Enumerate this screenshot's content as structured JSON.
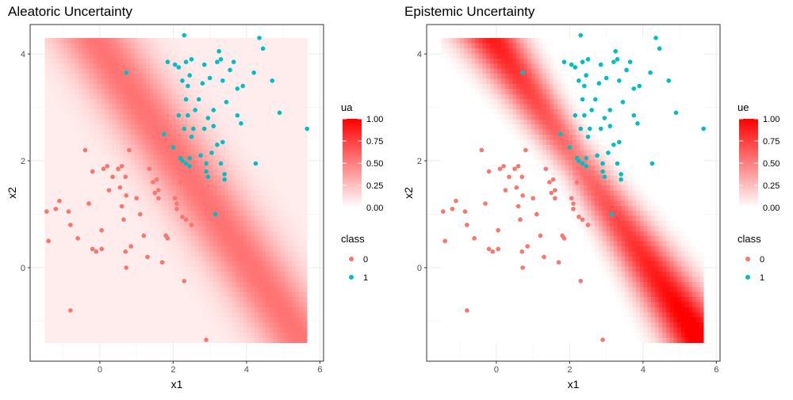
{
  "chart_data": [
    {
      "type": "scatter",
      "title": "Aleatoric Uncertainty",
      "xlabel": "x1",
      "ylabel": "x2",
      "xlim": [
        -1.9,
        6.1
      ],
      "ylim": [
        -1.75,
        4.55
      ],
      "x_ticks": [
        0,
        2,
        4,
        6
      ],
      "y_ticks": [
        0,
        2,
        4
      ],
      "grid": true,
      "heatmap": {
        "variable": "ua",
        "x_range": [
          -1.5,
          5.65
        ],
        "y_range": [
          -1.4,
          4.3
        ],
        "colorbar_ticks": [
          "0.00",
          "0.25",
          "0.50",
          "0.75",
          "1.00"
        ],
        "low_color": "#ffffff",
        "high_color": "#ff0000",
        "pattern": "aleatoric"
      },
      "legend": {
        "title": "class",
        "entries": [
          "0",
          "1"
        ],
        "colors": [
          "#f8766d",
          "#00bfc4"
        ],
        "placement": "right"
      }
    },
    {
      "type": "scatter",
      "title": "Epistemic Uncertainty",
      "xlabel": "x1",
      "ylabel": "x2",
      "xlim": [
        -1.9,
        6.1
      ],
      "ylim": [
        -1.75,
        4.55
      ],
      "x_ticks": [
        0,
        2,
        4,
        6
      ],
      "y_ticks": [
        0,
        2,
        4
      ],
      "grid": true,
      "heatmap": {
        "variable": "ue",
        "x_range": [
          -1.5,
          5.65
        ],
        "y_range": [
          -1.4,
          4.3
        ],
        "colorbar_ticks": [
          "0.00",
          "0.25",
          "0.50",
          "0.75",
          "1.00"
        ],
        "low_color": "#ffffff",
        "high_color": "#ff0000",
        "pattern": "epistemic"
      },
      "legend": {
        "title": "class",
        "entries": [
          "0",
          "1"
        ],
        "colors": [
          "#f8766d",
          "#00bfc4"
        ],
        "placement": "right"
      }
    }
  ],
  "points": {
    "class_0": [
      [
        -1.45,
        1.05
      ],
      [
        -1.2,
        1.1
      ],
      [
        -1.1,
        1.25
      ],
      [
        -0.85,
        1.05
      ],
      [
        -0.8,
        0.8
      ],
      [
        -1.4,
        0.5
      ],
      [
        -0.4,
        2.2
      ],
      [
        -0.6,
        0.55
      ],
      [
        -0.2,
        1.8
      ],
      [
        -0.3,
        1.2
      ],
      [
        0.1,
        1.85
      ],
      [
        0.05,
        0.7
      ],
      [
        0.2,
        1.9
      ],
      [
        0.25,
        1.45
      ],
      [
        0.35,
        1.7
      ],
      [
        0.5,
        1.85
      ],
      [
        0.55,
        1.5
      ],
      [
        0.6,
        1.15
      ],
      [
        0.65,
        0.9
      ],
      [
        0.7,
        1.7
      ],
      [
        0.72,
        1.35
      ],
      [
        0.8,
        2.2
      ],
      [
        0.85,
        0.4
      ],
      [
        1.0,
        1.3
      ],
      [
        1.1,
        1.0
      ],
      [
        1.2,
        0.6
      ],
      [
        1.3,
        0.2
      ],
      [
        1.35,
        1.85
      ],
      [
        1.45,
        1.6
      ],
      [
        1.5,
        1.4
      ],
      [
        1.6,
        1.3
      ],
      [
        1.7,
        0.1
      ],
      [
        1.8,
        0.6
      ],
      [
        1.85,
        0.55
      ],
      [
        2.1,
        1.2
      ],
      [
        2.2,
        1.6
      ],
      [
        2.25,
        0.95
      ],
      [
        2.35,
        0.9
      ],
      [
        2.5,
        0.8
      ],
      [
        2.45,
        1.8
      ],
      [
        0.72,
        0.0
      ],
      [
        2.3,
        -0.25
      ],
      [
        -0.8,
        -0.8
      ],
      [
        2.9,
        -1.35
      ],
      [
        0.7,
        0.3
      ],
      [
        -0.2,
        0.35
      ],
      [
        0.05,
        0.35
      ],
      [
        -0.1,
        0.3
      ],
      [
        1.55,
        1.65
      ],
      [
        1.6,
        1.45
      ],
      [
        2.1,
        1.1
      ],
      [
        2.05,
        1.3
      ],
      [
        0.6,
        1.9
      ]
    ],
    "class_1": [
      [
        2.3,
        4.35
      ],
      [
        1.85,
        3.85
      ],
      [
        2.05,
        3.8
      ],
      [
        2.15,
        3.75
      ],
      [
        2.25,
        3.5
      ],
      [
        2.35,
        3.85
      ],
      [
        2.4,
        3.4
      ],
      [
        2.45,
        3.6
      ],
      [
        2.5,
        3.9
      ],
      [
        2.7,
        3.15
      ],
      [
        2.8,
        3.45
      ],
      [
        2.85,
        3.8
      ],
      [
        3.0,
        3.55
      ],
      [
        3.1,
        2.95
      ],
      [
        3.2,
        3.85
      ],
      [
        3.25,
        4.05
      ],
      [
        3.3,
        3.9
      ],
      [
        3.35,
        3.5
      ],
      [
        3.45,
        3.1
      ],
      [
        3.55,
        3.7
      ],
      [
        3.65,
        3.85
      ],
      [
        3.75,
        2.85
      ],
      [
        3.85,
        2.7
      ],
      [
        3.9,
        3.4
      ],
      [
        4.2,
        3.65
      ],
      [
        4.35,
        4.3
      ],
      [
        4.45,
        4.1
      ],
      [
        4.7,
        3.5
      ],
      [
        4.9,
        2.9
      ],
      [
        5.65,
        2.6
      ],
      [
        0.72,
        3.65
      ],
      [
        1.75,
        2.5
      ],
      [
        2.0,
        2.25
      ],
      [
        2.25,
        2.0
      ],
      [
        2.3,
        2.6
      ],
      [
        2.35,
        3.15
      ],
      [
        2.4,
        2.85
      ],
      [
        2.45,
        2.05
      ],
      [
        2.5,
        2.45
      ],
      [
        2.55,
        2.6
      ],
      [
        2.6,
        2.95
      ],
      [
        2.75,
        2.1
      ],
      [
        2.85,
        2.6
      ],
      [
        2.9,
        1.95
      ],
      [
        2.95,
        2.8
      ],
      [
        3.05,
        2.15
      ],
      [
        3.1,
        2.65
      ],
      [
        3.2,
        2.3
      ],
      [
        3.3,
        1.95
      ],
      [
        3.35,
        2.35
      ],
      [
        3.4,
        1.75
      ],
      [
        3.4,
        1.65
      ],
      [
        2.9,
        1.8
      ],
      [
        2.95,
        1.7
      ],
      [
        2.2,
        2.05
      ],
      [
        2.35,
        1.95
      ],
      [
        4.25,
        1.95
      ],
      [
        3.15,
        1.0
      ],
      [
        2.45,
        1.9
      ],
      [
        3.75,
        3.35
      ],
      [
        2.15,
        2.85
      ]
    ]
  }
}
